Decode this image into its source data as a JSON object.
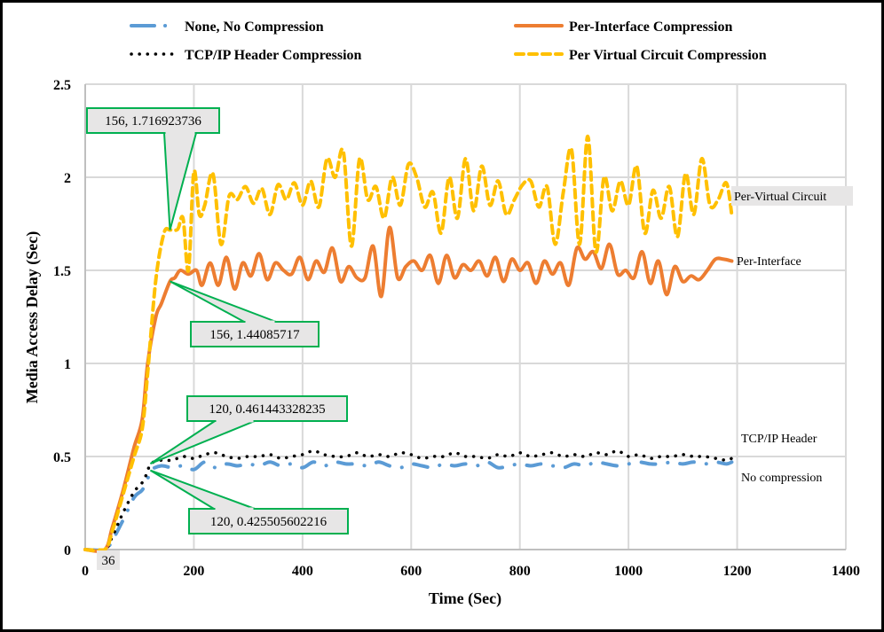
{
  "chart_data": {
    "type": "line",
    "title": "",
    "xlabel": "Time (Sec)",
    "ylabel": "Media Access Delay (Sec)",
    "xlim": [
      0,
      1400
    ],
    "ylim": [
      0,
      2.5
    ],
    "grid": true,
    "legend_position": "top",
    "x_ticks": [
      "0",
      "200",
      "400",
      "600",
      "800",
      "1000",
      "1200",
      "1400"
    ],
    "y_ticks": [
      "0",
      "0.5",
      "1",
      "1.5",
      "2",
      "2.5"
    ],
    "series": [
      {
        "name": "None, No Compression",
        "short_label": "No compression",
        "color": "#5b9bd5",
        "style": "dash-dot",
        "x": [
          0,
          36,
          50,
          70,
          90,
          105,
          115,
          120,
          140,
          160,
          180,
          200,
          220,
          240,
          260,
          280,
          300,
          320,
          340,
          360,
          380,
          400,
          420,
          440,
          460,
          480,
          500,
          520,
          540,
          560,
          580,
          600,
          620,
          640,
          660,
          680,
          700,
          720,
          740,
          760,
          780,
          800,
          820,
          840,
          860,
          880,
          900,
          920,
          940,
          960,
          980,
          1000,
          1020,
          1040,
          1060,
          1080,
          1100,
          1120,
          1140,
          1160,
          1180,
          1190
        ],
        "values": [
          0,
          0,
          0.05,
          0.16,
          0.28,
          0.32,
          0.38,
          0.4255,
          0.45,
          0.44,
          0.45,
          0.43,
          0.47,
          0.44,
          0.46,
          0.45,
          0.46,
          0.45,
          0.47,
          0.45,
          0.46,
          0.44,
          0.47,
          0.45,
          0.47,
          0.46,
          0.46,
          0.45,
          0.47,
          0.45,
          0.44,
          0.46,
          0.45,
          0.44,
          0.46,
          0.45,
          0.46,
          0.45,
          0.47,
          0.44,
          0.45,
          0.46,
          0.45,
          0.46,
          0.45,
          0.44,
          0.46,
          0.45,
          0.47,
          0.46,
          0.45,
          0.46,
          0.47,
          0.46,
          0.46,
          0.47,
          0.46,
          0.47,
          0.46,
          0.47,
          0.46,
          0.47
        ]
      },
      {
        "name": "TCP/IP Header Compression",
        "short_label": "TCP/IP Header",
        "color": "#000000",
        "style": "dotted",
        "x": [
          0,
          36,
          50,
          70,
          90,
          105,
          115,
          120,
          140,
          160,
          180,
          200,
          220,
          240,
          260,
          280,
          300,
          320,
          340,
          360,
          380,
          400,
          420,
          440,
          460,
          480,
          500,
          520,
          540,
          560,
          580,
          600,
          620,
          640,
          660,
          680,
          700,
          720,
          740,
          760,
          780,
          800,
          820,
          840,
          860,
          880,
          900,
          920,
          940,
          960,
          980,
          1000,
          1020,
          1040,
          1060,
          1080,
          1100,
          1120,
          1140,
          1160,
          1180,
          1190
        ],
        "values": [
          0,
          0,
          0.07,
          0.2,
          0.31,
          0.36,
          0.42,
          0.4614,
          0.48,
          0.48,
          0.5,
          0.49,
          0.51,
          0.52,
          0.5,
          0.49,
          0.5,
          0.5,
          0.51,
          0.49,
          0.5,
          0.51,
          0.53,
          0.51,
          0.5,
          0.5,
          0.52,
          0.5,
          0.51,
          0.5,
          0.52,
          0.51,
          0.49,
          0.5,
          0.5,
          0.52,
          0.5,
          0.5,
          0.49,
          0.51,
          0.5,
          0.52,
          0.5,
          0.51,
          0.52,
          0.5,
          0.51,
          0.5,
          0.52,
          0.51,
          0.53,
          0.5,
          0.51,
          0.49,
          0.5,
          0.5,
          0.51,
          0.5,
          0.5,
          0.49,
          0.48,
          0.49
        ]
      },
      {
        "name": "Per-Interface Compression",
        "short_label": "Per-Interface",
        "color": "#ed7d31",
        "style": "solid",
        "x": [
          0,
          36,
          50,
          70,
          90,
          105,
          115,
          130,
          140,
          156,
          165,
          175,
          190,
          205,
          215,
          230,
          245,
          260,
          275,
          290,
          305,
          320,
          335,
          350,
          365,
          380,
          395,
          410,
          425,
          440,
          455,
          470,
          485,
          500,
          515,
          530,
          545,
          560,
          575,
          590,
          605,
          620,
          635,
          650,
          665,
          680,
          695,
          710,
          725,
          740,
          755,
          770,
          785,
          800,
          815,
          830,
          845,
          860,
          875,
          890,
          905,
          920,
          935,
          950,
          965,
          980,
          995,
          1010,
          1025,
          1040,
          1055,
          1070,
          1085,
          1100,
          1115,
          1130,
          1145,
          1160,
          1175,
          1190
        ],
        "values": [
          0,
          0,
          0.12,
          0.32,
          0.55,
          0.7,
          1.0,
          1.25,
          1.32,
          1.44,
          1.46,
          1.5,
          1.48,
          1.5,
          1.42,
          1.54,
          1.42,
          1.57,
          1.4,
          1.54,
          1.47,
          1.59,
          1.45,
          1.54,
          1.5,
          1.48,
          1.57,
          1.45,
          1.55,
          1.49,
          1.62,
          1.44,
          1.52,
          1.46,
          1.46,
          1.63,
          1.36,
          1.73,
          1.46,
          1.52,
          1.55,
          1.5,
          1.58,
          1.43,
          1.58,
          1.46,
          1.53,
          1.5,
          1.55,
          1.47,
          1.57,
          1.44,
          1.56,
          1.5,
          1.54,
          1.43,
          1.55,
          1.48,
          1.54,
          1.42,
          1.62,
          1.56,
          1.6,
          1.51,
          1.64,
          1.48,
          1.5,
          1.46,
          1.6,
          1.43,
          1.55,
          1.37,
          1.52,
          1.44,
          1.47,
          1.45,
          1.5,
          1.56,
          1.56,
          1.55
        ]
      },
      {
        "name": "Per Virtual Circuit Compression",
        "short_label": "Per-Virtual Circuit",
        "color": "#ffc000",
        "style": "dashed",
        "x": [
          0,
          36,
          50,
          70,
          90,
          105,
          115,
          130,
          145,
          156,
          170,
          180,
          190,
          200,
          210,
          220,
          235,
          250,
          265,
          280,
          295,
          310,
          325,
          340,
          355,
          370,
          385,
          400,
          415,
          430,
          445,
          460,
          475,
          490,
          505,
          520,
          535,
          550,
          565,
          580,
          595,
          610,
          625,
          640,
          655,
          670,
          685,
          700,
          715,
          730,
          745,
          760,
          775,
          790,
          805,
          820,
          835,
          850,
          865,
          880,
          895,
          910,
          925,
          940,
          955,
          970,
          985,
          1000,
          1015,
          1030,
          1045,
          1060,
          1075,
          1090,
          1105,
          1120,
          1135,
          1150,
          1165,
          1180,
          1190
        ],
        "values": [
          0,
          0,
          0.1,
          0.3,
          0.5,
          0.65,
          0.95,
          1.45,
          1.7,
          1.7169,
          1.72,
          1.78,
          1.5,
          2.03,
          1.8,
          1.85,
          2.02,
          1.64,
          1.9,
          1.88,
          1.95,
          1.86,
          1.94,
          1.8,
          1.96,
          1.88,
          1.97,
          1.85,
          1.98,
          1.84,
          2.1,
          2.0,
          2.14,
          1.63,
          2.1,
          1.88,
          1.95,
          1.78,
          2.0,
          1.85,
          2.07,
          2.0,
          1.84,
          1.92,
          1.7,
          2.0,
          1.78,
          2.1,
          1.82,
          2.06,
          1.85,
          1.98,
          1.8,
          1.88,
          1.96,
          1.98,
          1.84,
          1.95,
          1.64,
          1.92,
          2.15,
          1.64,
          2.22,
          1.6,
          2.0,
          1.82,
          1.98,
          1.85,
          2.06,
          1.7,
          1.93,
          1.78,
          1.95,
          1.68,
          2.02,
          1.8,
          2.1,
          1.85,
          1.88,
          1.97,
          1.8
        ]
      }
    ],
    "annotations": [
      {
        "text": "156, 1.716923736",
        "series": "Per Virtual Circuit Compression",
        "x": 156,
        "y": 1.716923736
      },
      {
        "text": "156, 1.44085717",
        "series": "Per-Interface Compression",
        "x": 156,
        "y": 1.44085717
      },
      {
        "text": "120, 0.461443328235",
        "series": "TCP/IP Header Compression",
        "x": 120,
        "y": 0.461443328235
      },
      {
        "text": "120, 0.425505602216",
        "series": "None, No Compression",
        "x": 120,
        "y": 0.425505602216
      },
      {
        "text": "36",
        "x": 36,
        "y": 0
      }
    ]
  }
}
